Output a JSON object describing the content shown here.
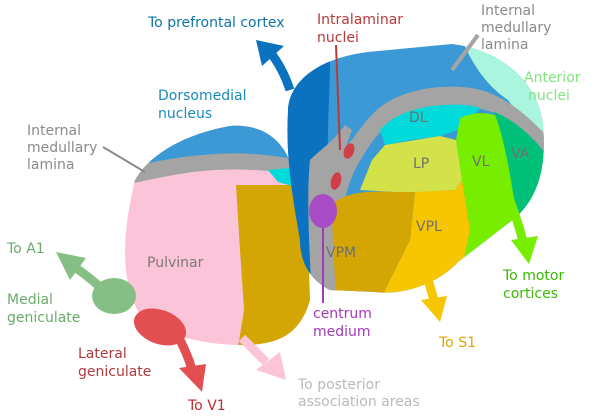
{
  "labels": {
    "to_prefrontal": "To prefrontal cortex",
    "intralaminar_1": "Intralaminar",
    "intralaminar_2": "nuclei",
    "iml_top_1": "Internal",
    "iml_top_2": "medullary",
    "iml_top_3": "lamina",
    "anterior_1": "Anterior",
    "anterior_2": "nuclei",
    "dorsomedial_1": "Dorsomedial",
    "dorsomedial_2": "nucleus",
    "iml_left_1": "Internal",
    "iml_left_2": "medullary",
    "iml_left_3": "lamina",
    "dl": "DL",
    "lp": "LP",
    "vl": "VL",
    "va": "VA",
    "vpl": "VPL",
    "vpm": "VPM",
    "pulvinar": "Pulvinar",
    "to_a1": "To A1",
    "medial_1": "Medial",
    "medial_2": "geniculate",
    "lateral_1": "Lateral",
    "lateral_2": "geniculate",
    "to_v1": "To V1",
    "to_posterior_1": "To posterior",
    "to_posterior_2": "association areas",
    "centrum_1": "centrum",
    "centrum_2": "medium",
    "to_s1": "To S1",
    "to_motor_1": "To motor",
    "to_motor_2": "cortices"
  },
  "colors": {
    "pulvinar": "#fcc4d9",
    "vpm_gold": "#d4a603",
    "vpl": "#f7c600",
    "dorsomedial": "#3b9ad6",
    "dark_blue": "#0b72c0",
    "lamina": "#a4a4a4",
    "dl": "#00dada",
    "lp": "#d4e24a",
    "vl": "#77ed00",
    "va": "#00c07a",
    "anterior": "#aaf5de",
    "medial_geniculate": "#86bf86",
    "lateral_geniculate": "#e34e50",
    "intralaminar": "#d23e48",
    "centrum_medium": "#a84cc5",
    "prefrontal_text": "#0d74a6",
    "anterior_text": "#7fe67f",
    "motor_text": "#3ab800",
    "s1_text": "#e0a400",
    "v1_text": "#c0282a",
    "lateral_text": "#b03a3c",
    "posterior_text": "#b9b9b9",
    "a1_text": "#6aab6a",
    "intralaminar_text": "#b93838",
    "centrum_text": "#a03ab8",
    "lamina_text": "#8a8a8a",
    "dorsomedial_text": "#178bb8"
  }
}
